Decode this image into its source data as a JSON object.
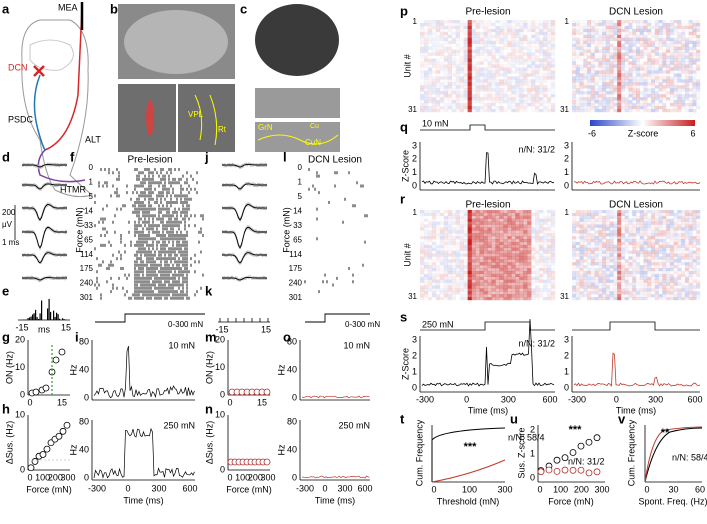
{
  "panels": {
    "a": {
      "label": "a",
      "texts": [
        "MEA",
        "DCN",
        "PSDC",
        "ALT",
        "HTMR"
      ]
    },
    "b": {
      "label": "b",
      "texts": [
        "VPL",
        "Rt"
      ]
    },
    "c": {
      "label": "c",
      "texts": [
        "GrN",
        "Cu",
        "CuN"
      ]
    },
    "d": {
      "label": "d",
      "scale_voltage": "200",
      "scale_unit": "μV",
      "scale_time": "1 ms"
    },
    "e": {
      "label": "e",
      "xticks": [
        -15,
        15
      ],
      "xlabel": "ms"
    },
    "f": {
      "label": "f",
      "title": "Pre-lesion",
      "ylabel": "Force (mN)",
      "yticks": [
        0,
        1,
        5,
        14,
        33,
        65,
        114,
        175,
        240,
        301
      ],
      "stimulus": "0-300 mN"
    },
    "g": {
      "label": "g",
      "ylabel": "ON (Hz)",
      "yticks": [
        0,
        10,
        20
      ],
      "xticks": [
        0,
        15
      ]
    },
    "h": {
      "label": "h",
      "ylabel": "ΔSus. (Hz)",
      "yticks": [
        0,
        10
      ],
      "xticks": [
        0,
        100,
        200,
        300
      ],
      "xlabel": "Force (mN)"
    },
    "i": {
      "label": "i",
      "top": {
        "ylabel": "Hz",
        "yticks": [
          0,
          40,
          80
        ],
        "stimulus": "10 mN"
      },
      "bottom": {
        "ylabel": "Hz",
        "yticks": [
          0,
          40,
          80
        ],
        "stimulus": "250 mN"
      },
      "xticks": [
        -300,
        0,
        300,
        600
      ],
      "xlabel": "Time (ms)"
    },
    "j": {
      "label": "j"
    },
    "k": {
      "label": "k",
      "xticks": [
        -15,
        15
      ]
    },
    "l": {
      "label": "l",
      "title": "DCN Lesion",
      "ylabel": "Force (mN)",
      "yticks": [
        0,
        1,
        5,
        14,
        33,
        65,
        114,
        175,
        240,
        301
      ],
      "stimulus": "0-300 mN"
    },
    "m": {
      "label": "m",
      "ylabel": "ON (Hz)",
      "yticks": [
        0,
        10,
        20
      ],
      "xticks": [
        0,
        15
      ]
    },
    "n": {
      "label": "n",
      "ylabel": "ΔSus. (Hz)",
      "yticks": [
        0,
        10
      ],
      "xticks": [
        0,
        100,
        200,
        300
      ],
      "xlabel": "Force (mN)"
    },
    "o": {
      "label": "o",
      "top": {
        "ylabel": "Hz",
        "yticks": [
          0,
          40,
          80
        ],
        "stimulus": "10 mN"
      },
      "bottom": {
        "ylabel": "Hz",
        "yticks": [
          0,
          40,
          80
        ],
        "stimulus": "250 mN"
      },
      "xticks": [
        -300,
        0,
        300,
        600
      ],
      "xlabel": "Time (ms)"
    },
    "p": {
      "label": "p",
      "left_title": "Pre-lesion",
      "right_title": "DCN Lesion",
      "ylabel": "Unit #",
      "yticks": [
        1,
        31
      ],
      "stimulus": "10 mN",
      "colorbar": {
        "min": -6,
        "label": "Z-score",
        "max": 6
      }
    },
    "q": {
      "label": "q",
      "ylabel": "Z-Score",
      "yticks": [
        0,
        1,
        2,
        3
      ],
      "annotation": "n/N: 31/2"
    },
    "r": {
      "label": "r",
      "left_title": "Pre-lesion",
      "right_title": "DCN Lesion",
      "ylabel": "Unit #",
      "yticks": [
        1,
        31
      ]
    },
    "s": {
      "label": "s",
      "stimulus": "250 mN",
      "ylabel": "Z-Score",
      "yticks": [
        0,
        1,
        2,
        3
      ],
      "annotation": "n/N: 31/2",
      "xticks": [
        -300,
        0,
        300,
        600
      ],
      "xlabel": "Time (ms)"
    },
    "t": {
      "label": "t",
      "ylabel": "Cum. Frequency",
      "significance": "***",
      "annotation": "n/N: 58/4",
      "xticks": [
        0,
        100,
        300
      ],
      "xlabel": "Threshold (mN)"
    },
    "u": {
      "label": "u",
      "ylabel": "Sus. Z-score",
      "yticks": [
        0,
        1,
        2
      ],
      "significance": "***",
      "annotation": "n/N: 31/2",
      "xticks": [
        0,
        100,
        200,
        300
      ],
      "xlabel": "Force (mN)"
    },
    "v": {
      "label": "v",
      "ylabel": "Cum. Frequency",
      "significance": "**",
      "annotation": "n/N: 58/4",
      "xticks": [
        0,
        30,
        60
      ],
      "xlabel": "Spont. Freq. (Hz)"
    }
  }
}
